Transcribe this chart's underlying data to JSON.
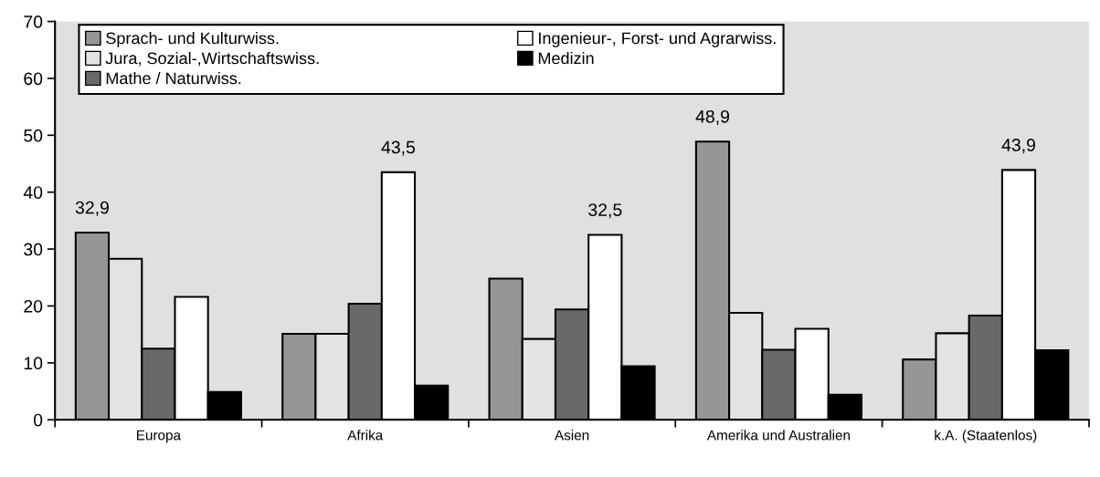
{
  "chart_data": {
    "type": "bar",
    "categories": [
      "Europa",
      "Afrika",
      "Asien",
      "Amerika und Australien",
      "k.A. (Staatenlos)"
    ],
    "series": [
      {
        "name": "Sprach- und Kulturwiss.",
        "color": "#969696",
        "values": [
          32.9,
          15.1,
          24.8,
          48.9,
          10.6
        ],
        "value_labels": [
          "32,9",
          null,
          null,
          "48,9",
          null
        ]
      },
      {
        "name": "Jura, Sozial-,Wirtschaftswiss.",
        "color": "#e3e3e3",
        "values": [
          28.3,
          15.1,
          14.2,
          18.8,
          15.2
        ]
      },
      {
        "name": "Mathe / Naturwiss.",
        "color": "#696969",
        "values": [
          12.5,
          20.4,
          19.4,
          12.3,
          18.3
        ]
      },
      {
        "name": "Ingenieur-, Forst- und Agrarwiss.",
        "color": "#ffffff",
        "values": [
          21.6,
          43.5,
          32.5,
          16.0,
          43.9
        ],
        "value_labels": [
          null,
          "43,5",
          "32,5",
          null,
          "43,9"
        ]
      },
      {
        "name": "Medizin",
        "color": "#000000",
        "values": [
          4.9,
          6.0,
          9.4,
          4.4,
          12.2
        ]
      }
    ],
    "ylim": [
      0,
      70
    ],
    "yticks": [
      0,
      10,
      20,
      30,
      40,
      50,
      60,
      70
    ],
    "grid": false,
    "legend": "top left"
  }
}
